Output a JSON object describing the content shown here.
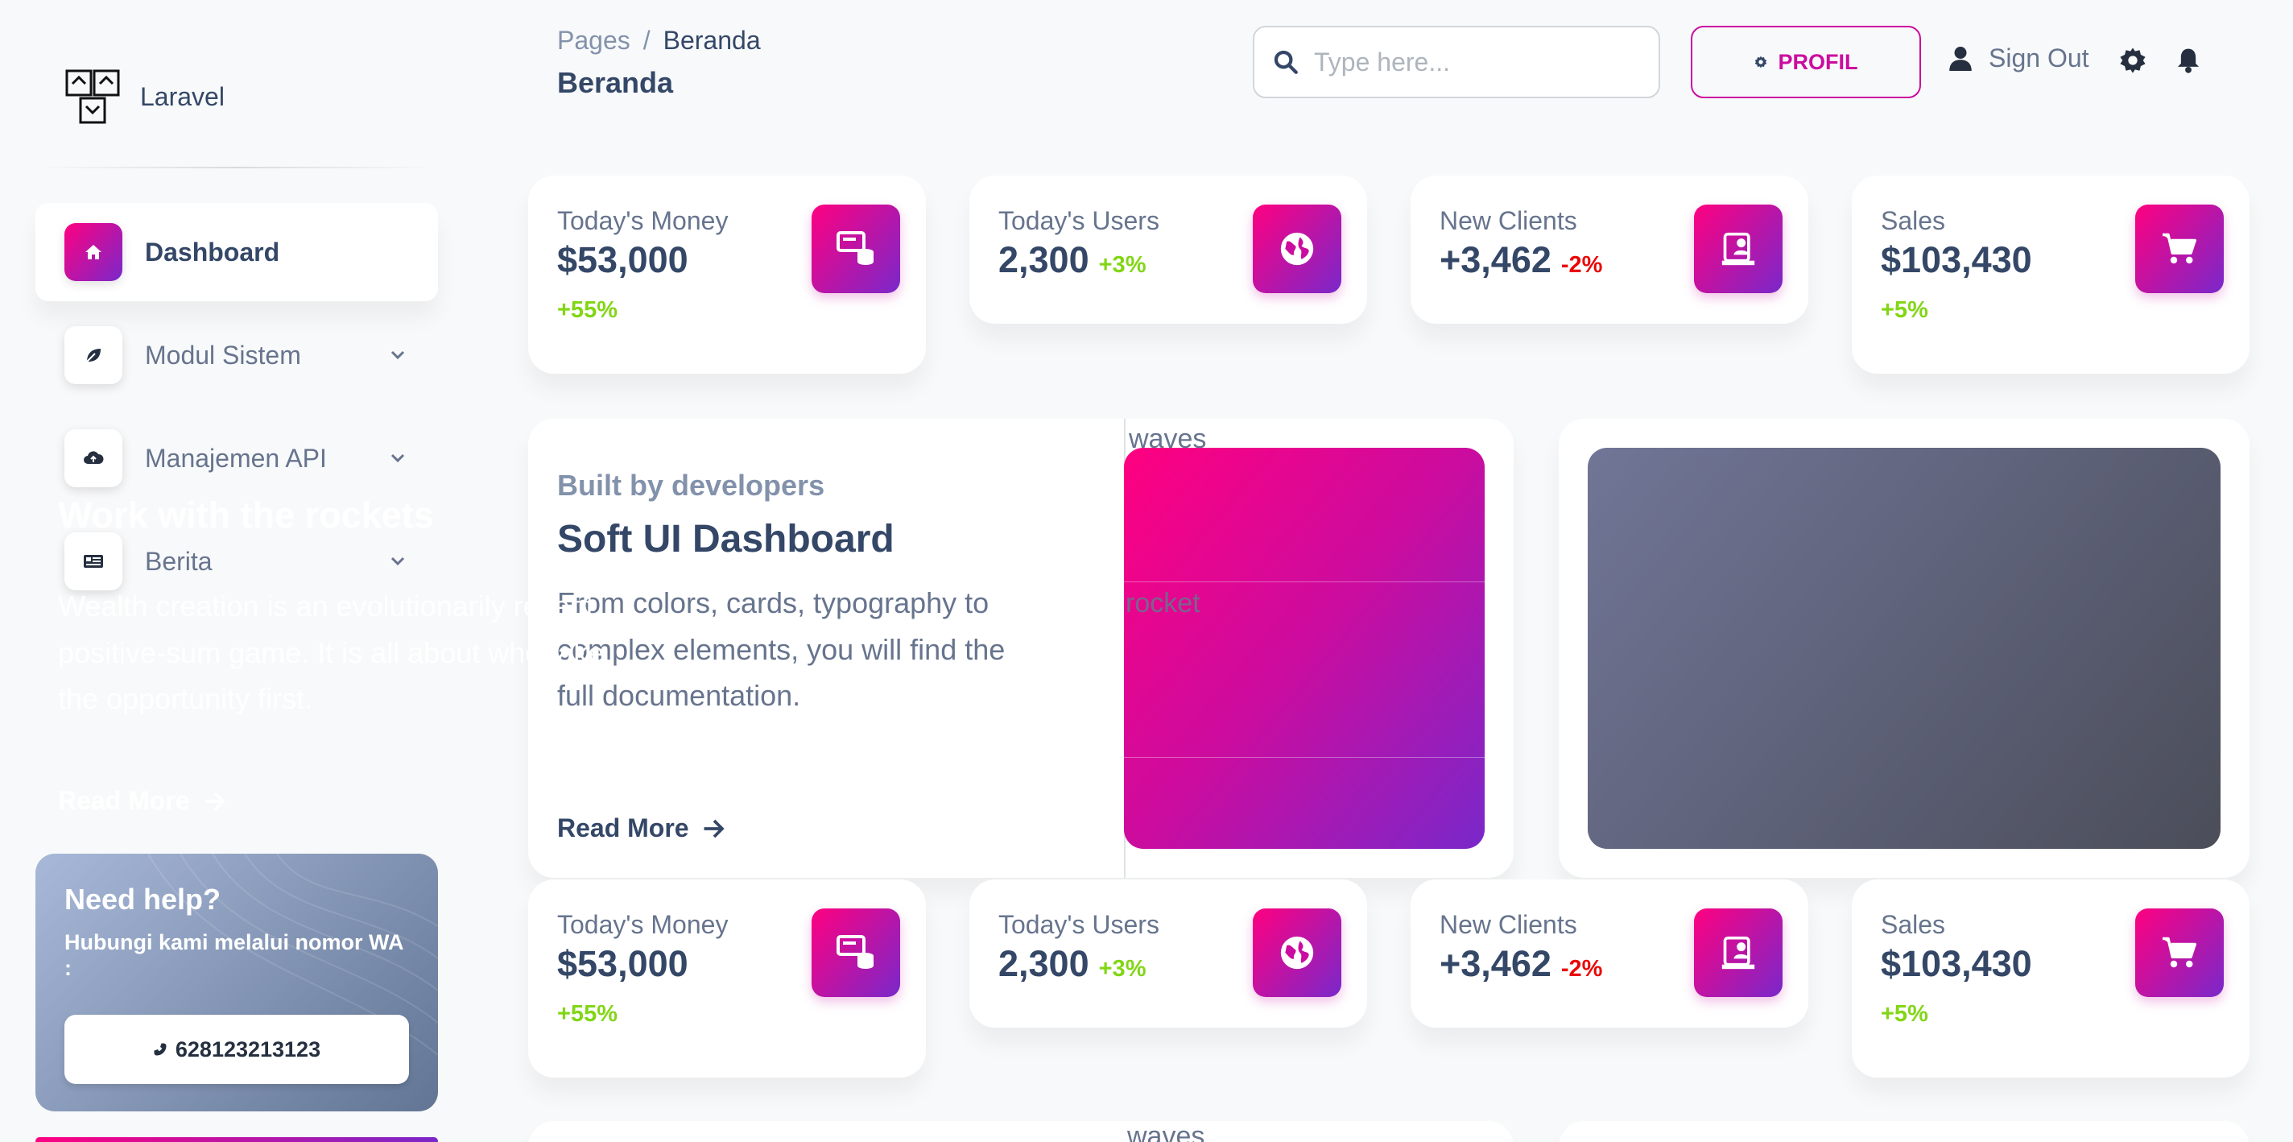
{
  "brand": {
    "name": "Laravel"
  },
  "sidebar": {
    "items": [
      {
        "label": "Dashboard",
        "icon": "home-icon",
        "active": true
      },
      {
        "label": "Modul Sistem",
        "icon": "leaf-icon"
      },
      {
        "label": "Manajemen API",
        "icon": "cloud-upload-icon"
      },
      {
        "label": "Berita",
        "icon": "newspaper-icon"
      }
    ],
    "help": {
      "title": "Need help?",
      "subtitle": "Hubungi kami melalui nomor WA :",
      "phone": "628123213123"
    }
  },
  "header": {
    "breadcrumb_prev": "Pages",
    "breadcrumb_sep": "/",
    "breadcrumb_current": "Beranda",
    "title": "Beranda",
    "search_placeholder": "Type here...",
    "profil_label": "PROFIL",
    "signout_label": "Sign Out"
  },
  "stats": [
    {
      "label": "Today's Money",
      "value": "$53,000",
      "change": "+55%",
      "trend": "positive",
      "icon": "money-icon"
    },
    {
      "label": "Today's Users",
      "value": "2,300",
      "change": "+3%",
      "trend": "positive",
      "icon": "globe-icon"
    },
    {
      "label": "New Clients",
      "value": "+3,462",
      "change": "-2%",
      "trend": "negative",
      "icon": "clients-icon"
    },
    {
      "label": "Sales",
      "value": "$103,430",
      "change": "+5%",
      "trend": "positive",
      "icon": "cart-icon"
    }
  ],
  "dev_card": {
    "overline": "Built by developers",
    "title": "Soft UI Dashboard",
    "text": "From colors, cards, typography to complex elements, you will find the full documentation.",
    "read_more": "Read More",
    "alt_waves": "waves",
    "alt_rocket": "rocket"
  },
  "rocket_card": {
    "title": "Work with the rockets",
    "text": "Wealth creation is an evolutionarily recent positive-sum game. It is all about who take the opportunity first.",
    "read_more": "Read More"
  },
  "colors": {
    "primary_gradient_start": "#7928ca",
    "primary_gradient_end": "#ff0080",
    "positive": "#82d616",
    "negative": "#ea0606",
    "text_dark": "#344767",
    "text_muted": "#67748e"
  }
}
